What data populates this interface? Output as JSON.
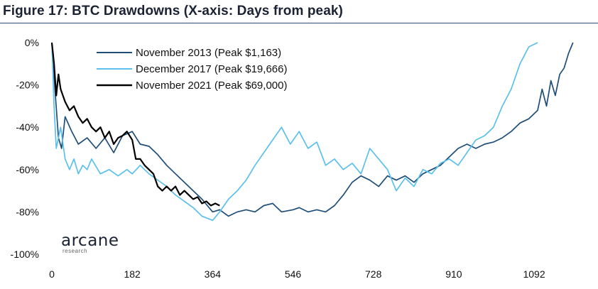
{
  "figure": {
    "title": "Figure 17: BTC Drawdowns (X-axis: Days from peak)"
  },
  "logo": {
    "name": "arcane",
    "subtitle": "research"
  },
  "chart_data": {
    "type": "line",
    "xlim": [
      0,
      1190
    ],
    "ylim": [
      -100,
      0
    ],
    "xticks": [
      0,
      182,
      364,
      546,
      728,
      910,
      1092
    ],
    "yticks": [
      0,
      -20,
      -40,
      -60,
      -80,
      -100
    ],
    "ytick_labels": [
      "0%",
      "-20%",
      "-40%",
      "-60%",
      "-80%",
      "-100%"
    ],
    "grid": false,
    "legend_position": "top-center",
    "series": [
      {
        "name": "November 2013 (Peak $1,163)",
        "color": "#1f4e79",
        "points": [
          [
            0,
            0
          ],
          [
            8,
            -25
          ],
          [
            15,
            -45
          ],
          [
            22,
            -50
          ],
          [
            30,
            -35
          ],
          [
            45,
            -42
          ],
          [
            60,
            -48
          ],
          [
            80,
            -45
          ],
          [
            100,
            -50
          ],
          [
            120,
            -45
          ],
          [
            140,
            -52
          ],
          [
            160,
            -44
          ],
          [
            182,
            -42
          ],
          [
            200,
            -48
          ],
          [
            220,
            -49
          ],
          [
            240,
            -53
          ],
          [
            260,
            -58
          ],
          [
            280,
            -62
          ],
          [
            300,
            -66
          ],
          [
            320,
            -70
          ],
          [
            340,
            -74
          ],
          [
            364,
            -80
          ],
          [
            380,
            -79
          ],
          [
            400,
            -82
          ],
          [
            420,
            -80
          ],
          [
            440,
            -79
          ],
          [
            460,
            -80
          ],
          [
            480,
            -77
          ],
          [
            500,
            -76
          ],
          [
            520,
            -80
          ],
          [
            546,
            -79
          ],
          [
            560,
            -78
          ],
          [
            580,
            -80
          ],
          [
            600,
            -79
          ],
          [
            620,
            -80
          ],
          [
            640,
            -77
          ],
          [
            660,
            -72
          ],
          [
            680,
            -66
          ],
          [
            700,
            -63
          ],
          [
            720,
            -65
          ],
          [
            740,
            -68
          ],
          [
            760,
            -63
          ],
          [
            780,
            -65
          ],
          [
            800,
            -63
          ],
          [
            820,
            -66
          ],
          [
            840,
            -62
          ],
          [
            860,
            -60
          ],
          [
            880,
            -58
          ],
          [
            900,
            -54
          ],
          [
            920,
            -50
          ],
          [
            940,
            -48
          ],
          [
            960,
            -50
          ],
          [
            980,
            -48
          ],
          [
            1000,
            -47
          ],
          [
            1020,
            -45
          ],
          [
            1040,
            -42
          ],
          [
            1060,
            -38
          ],
          [
            1080,
            -36
          ],
          [
            1100,
            -32
          ],
          [
            1110,
            -22
          ],
          [
            1120,
            -30
          ],
          [
            1130,
            -18
          ],
          [
            1140,
            -25
          ],
          [
            1150,
            -15
          ],
          [
            1160,
            -12
          ],
          [
            1170,
            -5
          ],
          [
            1180,
            0
          ]
        ]
      },
      {
        "name": "December 2017 (Peak $19,666)",
        "color": "#5bc0eb",
        "points": [
          [
            0,
            0
          ],
          [
            5,
            -30
          ],
          [
            10,
            -50
          ],
          [
            20,
            -40
          ],
          [
            30,
            -55
          ],
          [
            40,
            -60
          ],
          [
            50,
            -55
          ],
          [
            60,
            -62
          ],
          [
            70,
            -58
          ],
          [
            80,
            -60
          ],
          [
            90,
            -55
          ],
          [
            110,
            -62
          ],
          [
            130,
            -60
          ],
          [
            150,
            -63
          ],
          [
            170,
            -60
          ],
          [
            182,
            -62
          ],
          [
            200,
            -58
          ],
          [
            220,
            -62
          ],
          [
            240,
            -65
          ],
          [
            260,
            -68
          ],
          [
            280,
            -72
          ],
          [
            300,
            -75
          ],
          [
            320,
            -78
          ],
          [
            340,
            -82
          ],
          [
            364,
            -84
          ],
          [
            380,
            -80
          ],
          [
            400,
            -74
          ],
          [
            420,
            -70
          ],
          [
            440,
            -65
          ],
          [
            460,
            -58
          ],
          [
            480,
            -52
          ],
          [
            500,
            -46
          ],
          [
            520,
            -40
          ],
          [
            540,
            -48
          ],
          [
            560,
            -42
          ],
          [
            580,
            -50
          ],
          [
            600,
            -47
          ],
          [
            620,
            -58
          ],
          [
            640,
            -55
          ],
          [
            660,
            -60
          ],
          [
            680,
            -57
          ],
          [
            700,
            -62
          ],
          [
            720,
            -50
          ],
          [
            740,
            -55
          ],
          [
            760,
            -60
          ],
          [
            780,
            -70
          ],
          [
            800,
            -64
          ],
          [
            820,
            -68
          ],
          [
            840,
            -60
          ],
          [
            860,
            -62
          ],
          [
            880,
            -57
          ],
          [
            900,
            -55
          ],
          [
            920,
            -58
          ],
          [
            940,
            -52
          ],
          [
            960,
            -46
          ],
          [
            980,
            -44
          ],
          [
            1000,
            -40
          ],
          [
            1020,
            -30
          ],
          [
            1040,
            -22
          ],
          [
            1060,
            -10
          ],
          [
            1080,
            -2
          ],
          [
            1100,
            0
          ]
        ]
      },
      {
        "name": "November 2021 (Peak $69,000)",
        "color": "#000000",
        "points": [
          [
            0,
            0
          ],
          [
            5,
            -10
          ],
          [
            10,
            -25
          ],
          [
            15,
            -15
          ],
          [
            20,
            -22
          ],
          [
            30,
            -28
          ],
          [
            40,
            -32
          ],
          [
            50,
            -30
          ],
          [
            60,
            -35
          ],
          [
            70,
            -38
          ],
          [
            80,
            -36
          ],
          [
            90,
            -40
          ],
          [
            100,
            -42
          ],
          [
            110,
            -40
          ],
          [
            120,
            -45
          ],
          [
            130,
            -42
          ],
          [
            140,
            -48
          ],
          [
            150,
            -45
          ],
          [
            160,
            -44
          ],
          [
            170,
            -42
          ],
          [
            182,
            -46
          ],
          [
            190,
            -55
          ],
          [
            200,
            -55
          ],
          [
            210,
            -58
          ],
          [
            220,
            -60
          ],
          [
            230,
            -62
          ],
          [
            240,
            -68
          ],
          [
            250,
            -70
          ],
          [
            260,
            -68
          ],
          [
            270,
            -70
          ],
          [
            280,
            -68
          ],
          [
            290,
            -72
          ],
          [
            300,
            -70
          ],
          [
            310,
            -72
          ],
          [
            320,
            -74
          ],
          [
            330,
            -73
          ],
          [
            340,
            -76
          ],
          [
            350,
            -75
          ],
          [
            360,
            -77
          ],
          [
            370,
            -76
          ],
          [
            380,
            -77
          ]
        ]
      }
    ]
  }
}
